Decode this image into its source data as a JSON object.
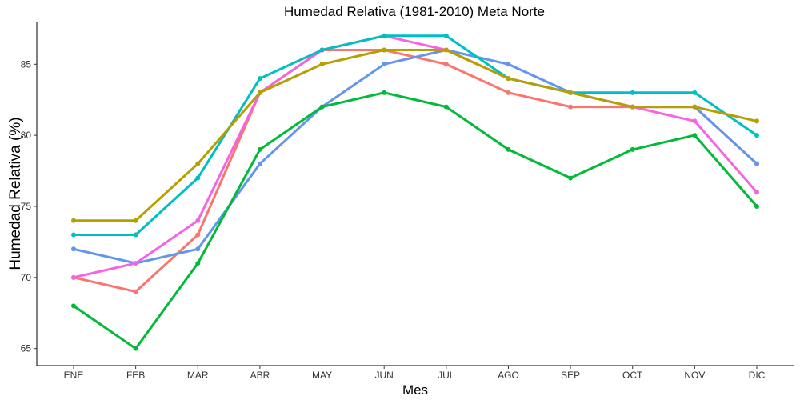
{
  "chart_data": {
    "type": "line",
    "title": "Humedad Relativa (1981-2010)  Meta Norte",
    "xlabel": "Mes",
    "ylabel": "Humedad Relativa  (%)",
    "categories": [
      "ENE",
      "FEB",
      "MAR",
      "ABR",
      "MAY",
      "JUN",
      "JUL",
      "AGO",
      "SEP",
      "OCT",
      "NOV",
      "DIC"
    ],
    "ylim": [
      63.8,
      88.0
    ],
    "yticks": [
      65,
      70,
      75,
      80,
      85
    ],
    "grid": false,
    "legend": "none",
    "series": [
      {
        "color": "#F8766D",
        "values": [
          70,
          69,
          73,
          83,
          86,
          86,
          85,
          83,
          82,
          82,
          82,
          78
        ]
      },
      {
        "color": "#6495ED",
        "values": [
          72,
          71,
          72,
          78,
          82,
          85,
          86,
          85,
          83,
          82,
          82,
          78
        ]
      },
      {
        "color": "#00BA38",
        "values": [
          68,
          65,
          71,
          79,
          82,
          83,
          82,
          79,
          77,
          79,
          80,
          75
        ]
      },
      {
        "color": "#F564E3",
        "values": [
          70,
          71,
          74,
          83,
          86,
          87,
          86,
          84,
          83,
          82,
          81,
          76
        ]
      },
      {
        "color": "#00BFC4",
        "values": [
          73,
          73,
          77,
          84,
          86,
          87,
          87,
          84,
          83,
          83,
          83,
          80
        ]
      },
      {
        "color": "#B79F00",
        "values": [
          74,
          74,
          78,
          83,
          85,
          86,
          86,
          84,
          83,
          82,
          82,
          81
        ]
      }
    ]
  }
}
